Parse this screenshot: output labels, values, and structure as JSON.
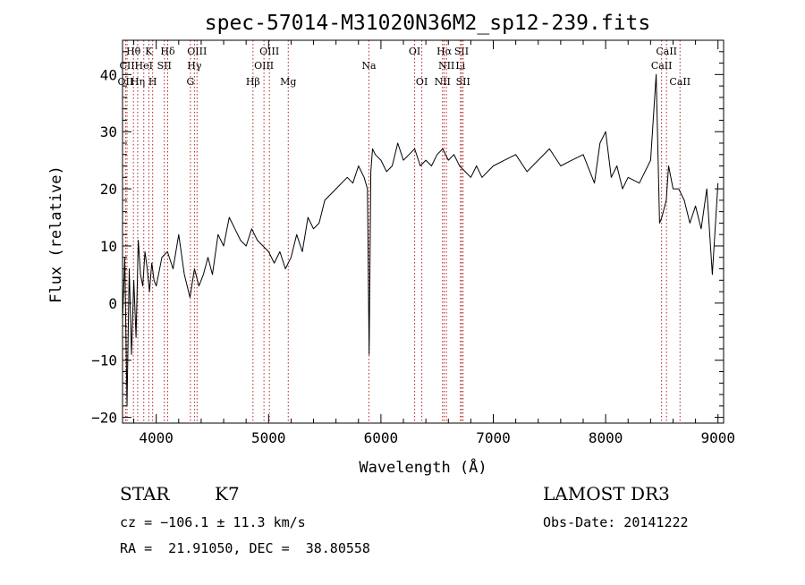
{
  "chart_data": {
    "type": "line",
    "title": "spec-57014-M31020N36M2_sp12-239.fits",
    "xlabel": "Wavelength (Å)",
    "ylabel": "Flux (relative)",
    "xlim": [
      3700,
      9050
    ],
    "ylim": [
      -21,
      46
    ],
    "xticks": [
      4000,
      5000,
      6000,
      7000,
      8000,
      9000
    ],
    "xtick_labels": [
      "4000",
      "5000",
      "6000",
      "7000",
      "8000",
      "9000"
    ],
    "yticks": [
      -20,
      -10,
      0,
      10,
      20,
      30,
      40
    ],
    "ytick_labels": [
      "−20",
      "−10",
      "0",
      "10",
      "20",
      "30",
      "40"
    ],
    "series": [
      {
        "name": "flux",
        "x": [
          3700,
          3720,
          3740,
          3760,
          3780,
          3800,
          3820,
          3840,
          3860,
          3880,
          3900,
          3920,
          3940,
          3960,
          3980,
          4000,
          4050,
          4100,
          4150,
          4200,
          4250,
          4300,
          4340,
          4380,
          4420,
          4460,
          4500,
          4550,
          4600,
          4650,
          4700,
          4750,
          4800,
          4850,
          4900,
          4950,
          5000,
          5050,
          5100,
          5150,
          5200,
          5250,
          5300,
          5350,
          5400,
          5450,
          5500,
          5550,
          5600,
          5650,
          5700,
          5750,
          5800,
          5850,
          5880,
          5895,
          5910,
          5925,
          5950,
          6000,
          6050,
          6100,
          6150,
          6200,
          6250,
          6300,
          6350,
          6400,
          6450,
          6500,
          6550,
          6600,
          6650,
          6700,
          6750,
          6800,
          6850,
          6900,
          6950,
          7000,
          7100,
          7200,
          7300,
          7400,
          7500,
          7600,
          7700,
          7800,
          7900,
          7950,
          8000,
          8050,
          8100,
          8150,
          8200,
          8300,
          8400,
          8450,
          8480,
          8500,
          8540,
          8560,
          8600,
          8650,
          8700,
          8750,
          8800,
          8850,
          8900,
          8950,
          9000
        ],
        "y": [
          -3,
          8,
          -18,
          6,
          -9,
          4,
          -6,
          11,
          5,
          3,
          9,
          6,
          2,
          7,
          4,
          3,
          8,
          9,
          6,
          12,
          5,
          1,
          6,
          3,
          5,
          8,
          5,
          12,
          10,
          15,
          13,
          11,
          10,
          13,
          11,
          10,
          9,
          7,
          9,
          6,
          8,
          12,
          9,
          15,
          13,
          14,
          18,
          19,
          20,
          21,
          22,
          21,
          24,
          22,
          20,
          -9,
          23,
          27,
          26,
          25,
          23,
          24,
          28,
          25,
          26,
          27,
          24,
          25,
          24,
          26,
          27,
          25,
          26,
          24,
          23,
          22,
          24,
          22,
          23,
          24,
          25,
          26,
          23,
          25,
          27,
          24,
          25,
          26,
          21,
          28,
          30,
          22,
          24,
          20,
          22,
          21,
          25,
          40,
          14,
          15,
          18,
          24,
          20,
          20,
          18,
          14,
          17,
          13,
          20,
          5,
          21
        ]
      }
    ],
    "lines": [
      {
        "label": "Hθ",
        "wavelength": 3797,
        "row": 1
      },
      {
        "label": "CII",
        "wavelength": 3740,
        "row": 2
      },
      {
        "label": "OII",
        "wavelength": 3727,
        "row": 3
      },
      {
        "label": "K",
        "wavelength": 3934,
        "row": 1
      },
      {
        "label": "HeI",
        "wavelength": 3889,
        "row": 2
      },
      {
        "label": "Hη",
        "wavelength": 3835,
        "row": 3
      },
      {
        "label": "SII",
        "wavelength": 4072,
        "row": 2
      },
      {
        "label": "H",
        "wavelength": 3968,
        "row": 3
      },
      {
        "label": "Hδ",
        "wavelength": 4102,
        "row": 1
      },
      {
        "label": "OIII",
        "wavelength": 4363,
        "row": 1
      },
      {
        "label": "Hγ",
        "wavelength": 4340,
        "row": 2
      },
      {
        "label": "G",
        "wavelength": 4304,
        "row": 3
      },
      {
        "label": "OIII",
        "wavelength": 5007,
        "row": 1
      },
      {
        "label": "OIII",
        "wavelength": 4959,
        "row": 2
      },
      {
        "label": "Hβ",
        "wavelength": 4861,
        "row": 3
      },
      {
        "label": "Mg",
        "wavelength": 5175,
        "row": 3
      },
      {
        "label": "Na",
        "wavelength": 5893,
        "row": 2
      },
      {
        "label": "OI",
        "wavelength": 6300,
        "row": 1
      },
      {
        "label": "OI",
        "wavelength": 6364,
        "row": 3
      },
      {
        "label": "Hα",
        "wavelength": 6563,
        "row": 1
      },
      {
        "label": "NII",
        "wavelength": 6583,
        "row": 2
      },
      {
        "label": "NII",
        "wavelength": 6548,
        "row": 3
      },
      {
        "label": "SII",
        "wavelength": 6717,
        "row": 1
      },
      {
        "label": "Li",
        "wavelength": 6708,
        "row": 2
      },
      {
        "label": "SII",
        "wavelength": 6731,
        "row": 3
      },
      {
        "label": "CaII",
        "wavelength": 8542,
        "row": 1
      },
      {
        "label": "CaII",
        "wavelength": 8498,
        "row": 2
      },
      {
        "label": "CaII",
        "wavelength": 8662,
        "row": 3
      }
    ]
  },
  "info": {
    "object_class": "STAR",
    "subclass": "K7",
    "survey": "LAMOST DR3",
    "redshift_text": "cz = −106.1 ± 11.3 km/s",
    "obs_date_text": "Obs-Date: 20141222",
    "coords_text": "RA =  21.91050, DEC =  38.80558"
  },
  "colors": {
    "spectrum": "#000000",
    "line_marker": "#b22222",
    "background": "#ffffff"
  }
}
